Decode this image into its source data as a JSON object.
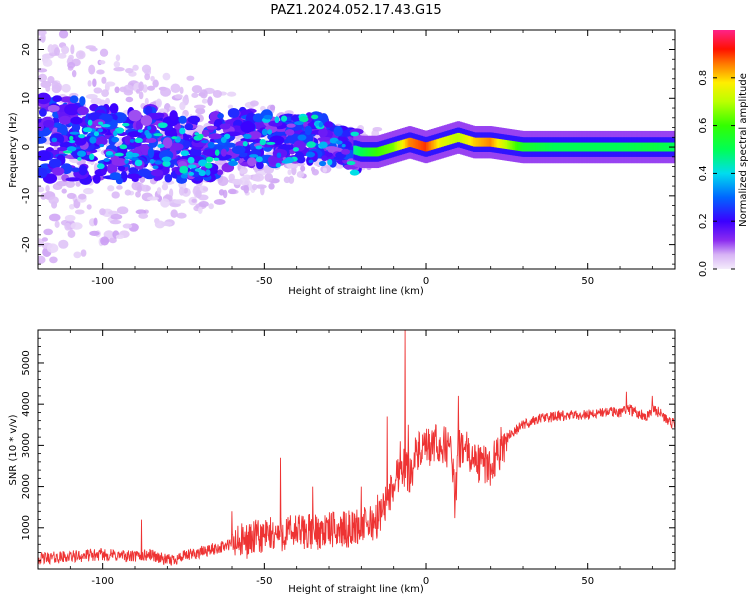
{
  "title": "PAZ1.2024.052.17.43.G15",
  "chart_data": [
    {
      "type": "heatmap",
      "title": "PAZ1.2024.052.17.43.G15",
      "xlabel": "Height of straight line (km)",
      "ylabel": "Frequency (Hz)",
      "xlim": [
        -120,
        77
      ],
      "ylim": [
        -25,
        24
      ],
      "xticks": [
        -100,
        -50,
        0,
        50
      ],
      "xtick_labels": [
        "-100",
        "-50",
        "0",
        "50"
      ],
      "yticks": [
        -20,
        -10,
        0,
        10,
        20
      ],
      "ytick_labels": [
        "-20",
        "-10",
        "0",
        "10",
        "20"
      ],
      "grid": false,
      "colormap": "gist_ncar-like (purple-blue-cyan-green-yellow-red-pink)",
      "colorbar": {
        "label": "Normalized spectral amplitude",
        "range": [
          0,
          1
        ],
        "ticks": [
          0.0,
          0.2,
          0.4,
          0.6,
          0.8
        ],
        "tick_labels": [
          "0.0",
          "0.2",
          "0.4",
          "0.6",
          "0.8"
        ]
      },
      "ridge": {
        "x": [
          -115,
          -105,
          -95,
          -85,
          -75,
          -65,
          -55,
          -45,
          -35,
          -25,
          -20,
          -15,
          -10,
          -5,
          0,
          5,
          10,
          15,
          20,
          30,
          40,
          50,
          60,
          70,
          77
        ],
        "y": [
          2,
          1,
          0,
          1,
          -1,
          0,
          2,
          1,
          2,
          0,
          -1,
          -1,
          0,
          1,
          0,
          1,
          2,
          1,
          1,
          0,
          0,
          0,
          0,
          0,
          0
        ],
        "amplitude": [
          0.2,
          0.2,
          0.22,
          0.22,
          0.22,
          0.25,
          0.3,
          0.3,
          0.3,
          0.4,
          0.5,
          0.6,
          0.65,
          0.85,
          0.9,
          0.75,
          0.7,
          0.8,
          0.85,
          0.55,
          0.5,
          0.5,
          0.5,
          0.52,
          0.5
        ]
      }
    },
    {
      "type": "line",
      "xlabel": "Height of straight line (km)",
      "ylabel": "SNR (10 * v/v)",
      "xlim": [
        -120,
        77
      ],
      "ylim": [
        0,
        5800
      ],
      "xticks": [
        -100,
        -50,
        0,
        50
      ],
      "xtick_labels": [
        "-100",
        "-50",
        "0",
        "50"
      ],
      "yticks": [
        1000,
        2000,
        3000,
        4000,
        5000
      ],
      "ytick_labels": [
        "1000",
        "2000",
        "3000",
        "4000",
        "5000"
      ],
      "grid": false,
      "series": [
        {
          "color": "#ee3333",
          "x": [
            -120,
            -110,
            -100,
            -90,
            -85,
            -80,
            -75,
            -70,
            -65,
            -60,
            -55,
            -50,
            -45,
            -40,
            -35,
            -30,
            -25,
            -20,
            -15,
            -12,
            -10,
            -8,
            -7,
            -6,
            -5,
            -3,
            0,
            3,
            5,
            8,
            9,
            10,
            12,
            15,
            20,
            25,
            30,
            35,
            40,
            45,
            50,
            55,
            60,
            62,
            65,
            68,
            70,
            72,
            75,
            77
          ],
          "y": [
            250,
            300,
            350,
            300,
            350,
            200,
            300,
            400,
            500,
            600,
            700,
            800,
            850,
            900,
            900,
            950,
            950,
            1050,
            1150,
            1700,
            2000,
            2500,
            2500,
            2400,
            2300,
            2800,
            2900,
            3000,
            3000,
            2900,
            1500,
            2900,
            2900,
            2600,
            2500,
            3200,
            3500,
            3650,
            3700,
            3720,
            3750,
            3800,
            3800,
            3900,
            3800,
            3700,
            3900,
            3800,
            3600,
            3500
          ],
          "spikes": [
            {
              "x": -88,
              "y": 1200
            },
            {
              "x": -60,
              "y": 1400
            },
            {
              "x": -45,
              "y": 2700
            },
            {
              "x": -35,
              "y": 2000
            },
            {
              "x": -20,
              "y": 2000
            },
            {
              "x": -15,
              "y": 1800
            },
            {
              "x": -12,
              "y": 3700
            },
            {
              "x": -8,
              "y": 3100
            },
            {
              "x": -6.5,
              "y": 5800
            },
            {
              "x": -5.5,
              "y": 3500
            },
            {
              "x": 3,
              "y": 3500
            },
            {
              "x": 10,
              "y": 4200
            },
            {
              "x": 11,
              "y": 3300
            },
            {
              "x": 62,
              "y": 4300
            },
            {
              "x": 70,
              "y": 4200
            }
          ]
        }
      ]
    }
  ]
}
